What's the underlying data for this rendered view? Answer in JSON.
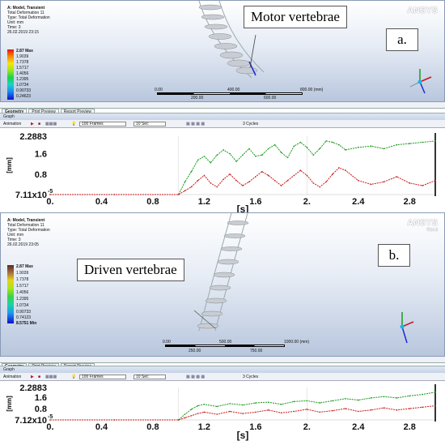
{
  "panels": [
    {
      "id": "a",
      "info": {
        "title": "A: Model, Transient",
        "lines": [
          "Total Deformation 11",
          "Type: Total Deformation",
          "Unit: mm",
          "Time: 3",
          "26.02.2019 23:15"
        ]
      },
      "legend": {
        "labels": [
          "2.87 Max",
          "1.9039",
          "1.7378",
          "1.5717",
          "1.4056",
          "1.2395",
          "1.0734",
          "0.90733",
          "0.24623"
        ]
      },
      "brand": {
        "name": "ANSYS",
        "version": ""
      },
      "callout": "Motor vertebrae",
      "tag": "a.",
      "scale_labels": [
        "0.00",
        "400.00",
        "800.00 (mm)",
        "200.00",
        "600.00"
      ],
      "tabs": [
        "Geometry",
        "Print Preview",
        "Report Preview"
      ],
      "graph_title": "Graph",
      "toolbar": {
        "animation": "Animation",
        "frames": "100 Frames",
        "duration": "10 Sec",
        "cycles": "3 Cycles"
      },
      "chart_data": {
        "type": "line",
        "xlabel": "[s]",
        "ylabel": "[mm]",
        "xlim": [
          0,
          3
        ],
        "ylim": [
          0,
          2.2883
        ],
        "x_ticks": [
          "0.",
          "0.4",
          "0.8",
          "1.2",
          "1.6",
          "2.",
          "2.4",
          "2.8"
        ],
        "y_ticks": [
          "7.11x10",
          "0.8",
          "1.6",
          "2.2883"
        ],
        "y_min_exponent": "-5",
        "series": [
          {
            "color": "#1a9a1a",
            "x": [
              0,
              0.5,
              1.0,
              1.05,
              1.1,
              1.15,
              1.2,
              1.25,
              1.3,
              1.35,
              1.4,
              1.45,
              1.5,
              1.55,
              1.6,
              1.65,
              1.7,
              1.75,
              1.8,
              1.85,
              1.9,
              1.95,
              2.0,
              2.05,
              2.1,
              2.15,
              2.2,
              2.25,
              2.3,
              2.4,
              2.5,
              2.6,
              2.7,
              2.8,
              2.9,
              3.0
            ],
            "y": [
              0.0,
              0.0,
              0.0,
              0.5,
              0.9,
              1.35,
              1.5,
              1.25,
              1.55,
              1.75,
              1.6,
              1.3,
              1.55,
              1.8,
              1.5,
              1.55,
              1.8,
              1.95,
              1.65,
              1.45,
              1.9,
              2.05,
              1.85,
              1.55,
              1.8,
              2.1,
              2.05,
              1.95,
              1.75,
              1.85,
              1.9,
              1.8,
              1.95,
              2.0,
              2.05,
              2.1
            ]
          },
          {
            "color": "#cc1a1a",
            "x": [
              0,
              0.5,
              1.0,
              1.05,
              1.1,
              1.15,
              1.2,
              1.25,
              1.3,
              1.35,
              1.4,
              1.45,
              1.5,
              1.55,
              1.6,
              1.65,
              1.7,
              1.75,
              1.8,
              1.85,
              1.9,
              1.95,
              2.0,
              2.05,
              2.1,
              2.15,
              2.2,
              2.25,
              2.3,
              2.4,
              2.5,
              2.6,
              2.7,
              2.8,
              2.9,
              3.0
            ],
            "y": [
              0.0,
              0.0,
              0.0,
              0.15,
              0.3,
              0.55,
              0.75,
              0.45,
              0.3,
              0.6,
              0.8,
              0.55,
              0.35,
              0.5,
              0.7,
              0.9,
              0.75,
              0.55,
              0.35,
              0.55,
              0.75,
              0.95,
              0.75,
              0.45,
              0.3,
              0.5,
              0.8,
              1.05,
              0.95,
              0.55,
              0.4,
              0.5,
              0.7,
              0.45,
              0.35,
              0.55
            ]
          }
        ]
      }
    },
    {
      "id": "b",
      "info": {
        "title": "A: Model, Transient",
        "lines": [
          "Total Deformation 11",
          "Type: Total Deformation",
          "Unit: mm",
          "Time: 3",
          "26.02.2019 23:05"
        ]
      },
      "legend": {
        "labels": [
          "2.87 Max",
          "1.9039",
          "1.7378",
          "1.5717",
          "1.4056",
          "1.2395",
          "1.0734",
          "0.90733",
          "0.74123",
          "8.5751 Min"
        ]
      },
      "brand": {
        "name": "ANSYS",
        "version": "R14.5"
      },
      "callout": "Driven vertebrae",
      "tag": "b.",
      "scale_labels": [
        "0.00",
        "500.00",
        "1000.00 (mm)",
        "250.00",
        "750.00"
      ],
      "tabs": [
        "Geometry",
        "Print Preview",
        "Report Preview"
      ],
      "graph_title": "Graph",
      "toolbar": {
        "animation": "Animation",
        "frames": "100 Frames",
        "duration": "10 Sec",
        "cycles": "3 Cycles"
      },
      "chart_data": {
        "type": "line",
        "xlabel": "[s]",
        "ylabel": "[mm]",
        "xlim": [
          0,
          3
        ],
        "ylim": [
          0,
          2.2883
        ],
        "x_ticks": [
          "0.",
          "0.4",
          "0.8",
          "1.2",
          "1.6",
          "2.",
          "2.4",
          "2.8"
        ],
        "y_ticks": [
          "7.12x10",
          "0.8",
          "1.6",
          "2.2883"
        ],
        "y_min_exponent": "-5",
        "series": [
          {
            "color": "#1a9a1a",
            "x": [
              0,
              0.5,
              1.0,
              1.05,
              1.1,
              1.15,
              1.2,
              1.3,
              1.4,
              1.5,
              1.6,
              1.7,
              1.8,
              1.9,
              2.0,
              2.1,
              2.2,
              2.3,
              2.4,
              2.5,
              2.6,
              2.7,
              2.8,
              2.9,
              3.0
            ],
            "y": [
              0.0,
              0.0,
              0.0,
              0.4,
              0.75,
              1.0,
              1.1,
              0.95,
              1.15,
              1.05,
              1.2,
              1.25,
              1.1,
              1.3,
              1.35,
              1.2,
              1.35,
              1.5,
              1.4,
              1.55,
              1.65,
              1.55,
              1.7,
              1.8,
              1.95
            ]
          },
          {
            "color": "#cc1a1a",
            "x": [
              0,
              0.5,
              1.0,
              1.05,
              1.1,
              1.15,
              1.2,
              1.3,
              1.4,
              1.5,
              1.6,
              1.7,
              1.8,
              1.9,
              2.0,
              2.1,
              2.2,
              2.3,
              2.4,
              2.5,
              2.6,
              2.7,
              2.8,
              2.9,
              3.0
            ],
            "y": [
              0.0,
              0.0,
              0.0,
              0.15,
              0.3,
              0.45,
              0.55,
              0.4,
              0.6,
              0.45,
              0.55,
              0.7,
              0.5,
              0.6,
              0.75,
              0.55,
              0.65,
              0.8,
              0.6,
              0.7,
              0.85,
              0.7,
              0.8,
              0.9,
              1.0
            ]
          }
        ]
      }
    }
  ]
}
